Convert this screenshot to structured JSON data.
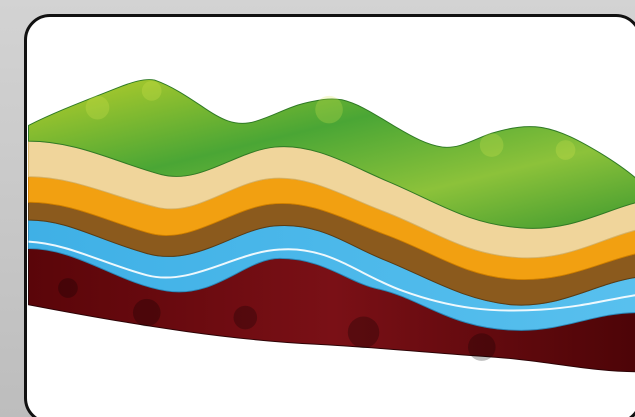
{
  "image": {
    "subject": "",
    "colors": {
      "background": "#ffffff",
      "frame": "#111111",
      "grass": "#4aa635",
      "grass_light": "#b9cf2b",
      "sand": "#f0d59b",
      "orange": "#f2a011",
      "brown": "#8b5a1d",
      "water": "#4cb5e5",
      "rock": "#6e0b12",
      "rock_dark": "#3d0508"
    }
  }
}
